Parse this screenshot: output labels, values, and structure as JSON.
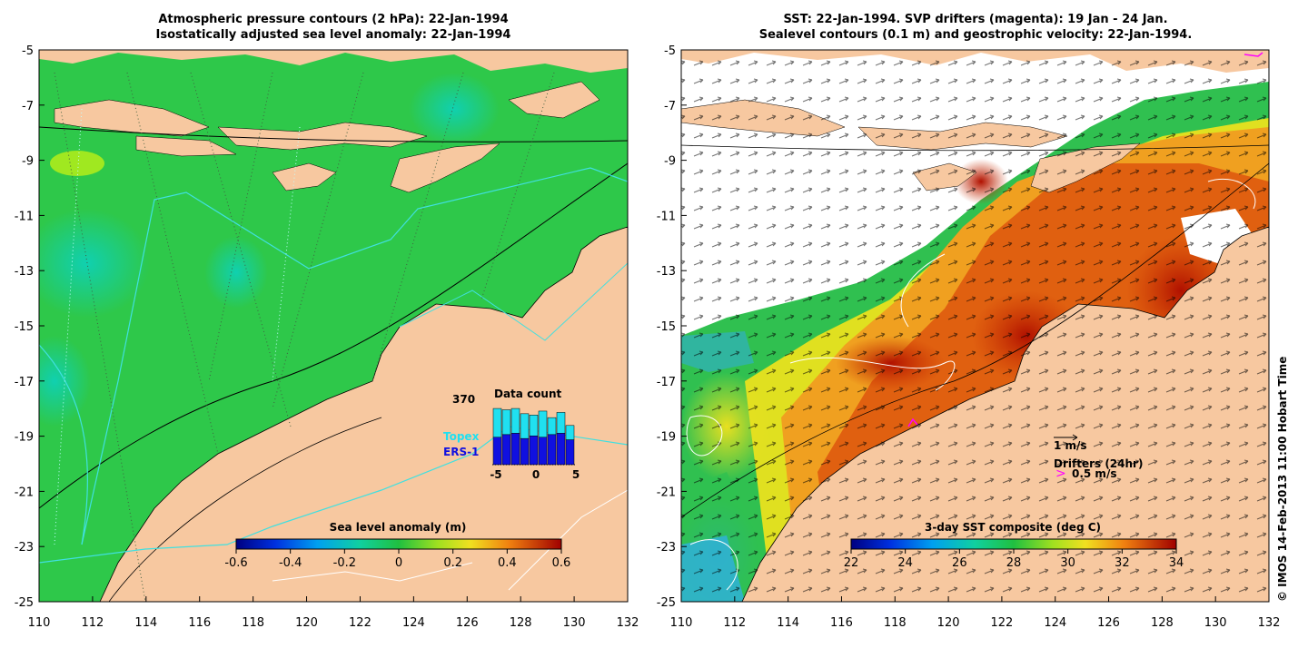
{
  "left_panel": {
    "title_line1": "Atmospheric pressure contours (2 hPa): 22-Jan-1994",
    "title_line2": "Isostatically adjusted sea level anomaly: 22-Jan-1994",
    "colorbar": {
      "title": "Sea level anomaly (m)",
      "ticks": [
        "-0.6",
        "-0.4",
        "-0.2",
        "0",
        "0.2",
        "0.4",
        "0.6"
      ]
    },
    "data_count": {
      "title": "Data count",
      "max_label": "370",
      "x_ticks": [
        "-5",
        "0",
        "5"
      ],
      "legend_topex": "Topex",
      "legend_ers1": "ERS-1",
      "topex_color": "#20e0f0",
      "ers1_color": "#1010e0",
      "bars_total": [
        0.86,
        0.84,
        0.86,
        0.78,
        0.76,
        0.82,
        0.72,
        0.8,
        0.6
      ],
      "bars_ers1": [
        0.42,
        0.46,
        0.48,
        0.4,
        0.44,
        0.42,
        0.46,
        0.48,
        0.38
      ]
    }
  },
  "right_panel": {
    "title_line1": "SST: 22-Jan-1994. SVP drifters (magenta): 19 Jan - 24 Jan.",
    "title_line2": "Sealevel contours (0.1 m) and geostrophic velocity: 22-Jan-1994.",
    "colorbar": {
      "title": "3-day SST composite (deg C)",
      "ticks": [
        "22",
        "24",
        "26",
        "28",
        "30",
        "32",
        "34"
      ]
    },
    "velocity_scale_label": "1 m/s",
    "drifters_label": "Drifters (24hr)",
    "drifter_scale_label": "0.5 m/s",
    "drifter_color": "#ff00ff"
  },
  "axes": {
    "y_ticks": [
      "-5",
      "-7",
      "-9",
      "-11",
      "-13",
      "-15",
      "-17",
      "-19",
      "-21",
      "-23",
      "-25"
    ],
    "x_ticks": [
      "110",
      "112",
      "114",
      "116",
      "118",
      "120",
      "122",
      "124",
      "126",
      "128",
      "130",
      "132"
    ]
  },
  "credit": "© IMOS 14-Feb-2013 11:00 Hobart Time",
  "colors": {
    "land": "#f7c8a0",
    "ocean_green": "#2ec84a"
  }
}
